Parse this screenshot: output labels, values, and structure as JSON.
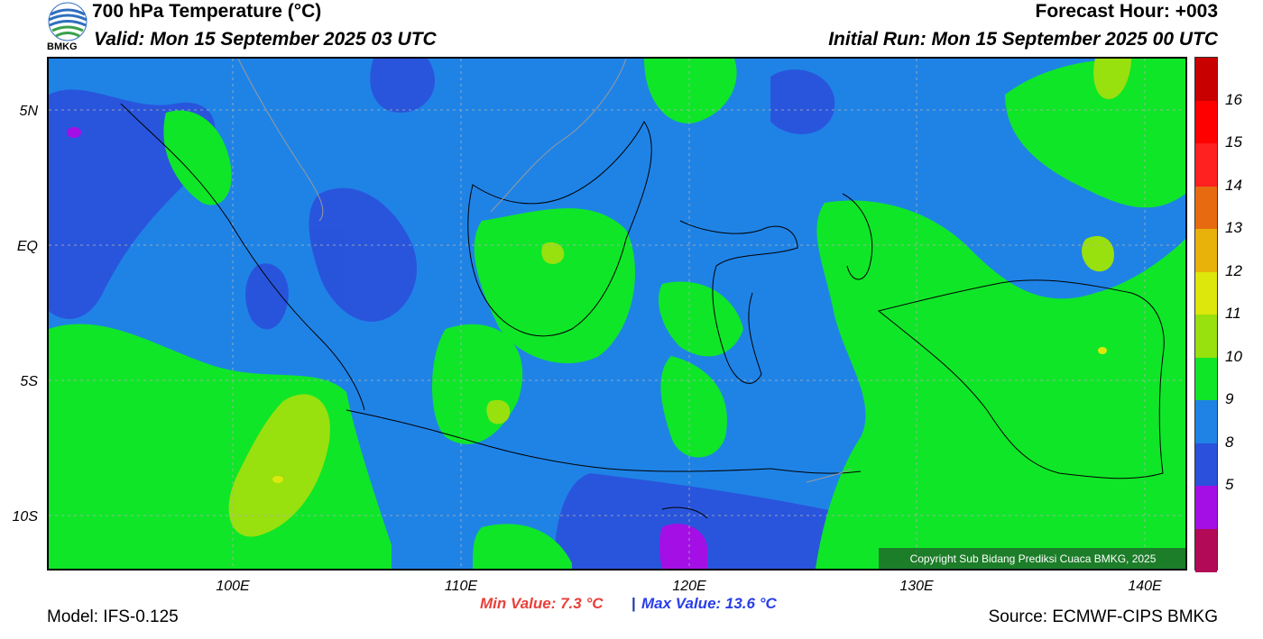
{
  "header": {
    "title": "700 hPa Temperature (°C)",
    "valid": "Valid: Mon 15 September 2025 03 UTC",
    "forecast_hour": "Forecast Hour: +003",
    "initial_run": "Initial Run: Mon 15 September 2025 00 UTC",
    "logo_text": "BMKG"
  },
  "map": {
    "lat_labels": [
      "5N",
      "EQ",
      "5S",
      "10S"
    ],
    "lon_labels": [
      "100E",
      "110E",
      "120E",
      "130E",
      "140E"
    ],
    "copyright": "Copyright Sub Bidang Prediksi Cuaca BMKG, 2025"
  },
  "colorbar": {
    "labels": [
      "16",
      "15",
      "14",
      "13",
      "12",
      "11",
      "10",
      "9",
      "8",
      "5"
    ],
    "colors": [
      "#c80000",
      "#ff0000",
      "#ff2020",
      "#e86a10",
      "#e8b20a",
      "#dde70c",
      "#98e00e",
      "#0fe628",
      "#1f83e6",
      "#2a50dc",
      "#a40fe6",
      "#b20a56"
    ]
  },
  "footer": {
    "min_value": "Min Value: 7.3 °C",
    "separator": "|",
    "max_value": "Max Value: 13.6 °C",
    "model": "Model: IFS-0.125",
    "source": "Source: ECMWF-CIPS BMKG"
  }
}
